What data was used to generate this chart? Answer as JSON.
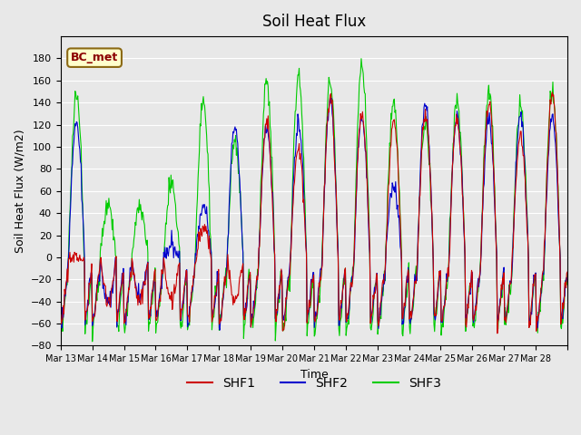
{
  "title": "Soil Heat Flux",
  "ylabel": "Soil Heat Flux (W/m2)",
  "xlabel": "Time",
  "ylim": [
    -80,
    200
  ],
  "yticks": [
    -80,
    -60,
    -40,
    -20,
    0,
    20,
    40,
    60,
    80,
    100,
    120,
    140,
    160,
    180
  ],
  "background_color": "#e8e8e8",
  "plot_bg_color": "#e8e8e8",
  "grid_color": "white",
  "shf1_color": "#cc0000",
  "shf2_color": "#0000cc",
  "shf3_color": "#00cc00",
  "legend_label": "BC_met",
  "series_labels": [
    "SHF1",
    "SHF2",
    "SHF3"
  ],
  "x_tick_labels": [
    "Mar 13",
    "Mar 14",
    "Mar 15",
    "Mar 16",
    "Mar 17",
    "Mar 18",
    "Mar 19",
    "Mar 20",
    "Mar 21",
    "Mar 22",
    "Mar 23",
    "Mar 24",
    "Mar 25",
    "Mar 26",
    "Mar 27",
    "Mar 28"
  ],
  "n_days": 16,
  "seed": 42
}
